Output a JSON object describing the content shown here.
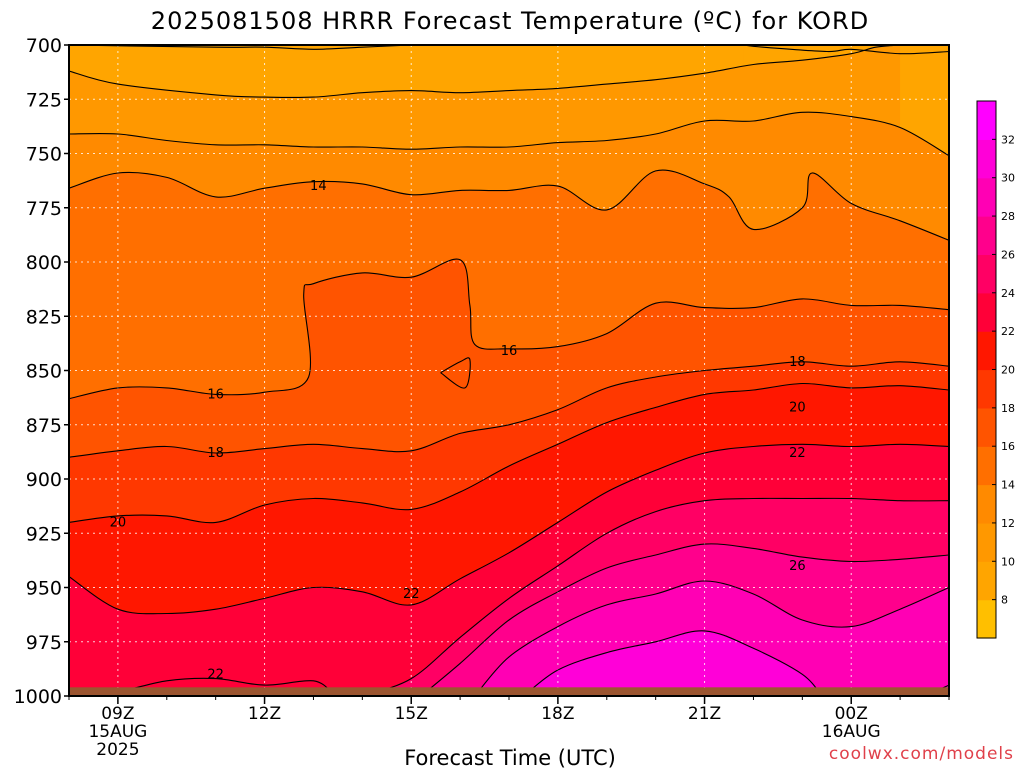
{
  "chart_data": {
    "type": "heatmap",
    "title": "2025081508 HRRR Forecast Temperature (ºC) for KORD",
    "xlabel": "Forecast Time (UTC)",
    "ylabel": "",
    "credit": "coolwx.com/models",
    "y_ticks": [
      700,
      725,
      750,
      775,
      800,
      825,
      850,
      875,
      900,
      925,
      950,
      975,
      1000
    ],
    "y_range": [
      700,
      1000
    ],
    "x_hours": [
      8,
      9,
      10,
      11,
      12,
      13,
      14,
      15,
      16,
      17,
      18,
      19,
      20,
      21,
      22,
      23,
      24,
      25,
      26
    ],
    "x_range": [
      8,
      26
    ],
    "x_ticks": [
      {
        "hour": 9,
        "lines": [
          "09Z",
          "15AUG",
          "2025"
        ]
      },
      {
        "hour": 12,
        "lines": [
          "12Z"
        ]
      },
      {
        "hour": 15,
        "lines": [
          "15Z"
        ]
      },
      {
        "hour": 18,
        "lines": [
          "18Z"
        ]
      },
      {
        "hour": 21,
        "lines": [
          "21Z"
        ]
      },
      {
        "hour": 24,
        "lines": [
          "00Z",
          "16AUG"
        ]
      }
    ],
    "colorbar": {
      "levels": [
        6,
        8,
        10,
        12,
        14,
        16,
        18,
        20,
        22,
        24,
        26,
        28,
        30,
        32,
        34
      ],
      "colors": [
        "#ffbf00",
        "#ffa500",
        "#ff9800",
        "#ff8a00",
        "#ff6f00",
        "#ff5400",
        "#ff3800",
        "#ff1700",
        "#ff0038",
        "#ff0064",
        "#ff008c",
        "#ff00b4",
        "#ff00d8",
        "#ff00ff"
      ],
      "tick_labels": [
        "8",
        "10",
        "12",
        "14",
        "16",
        "18",
        "20",
        "22",
        "24",
        "26",
        "28",
        "30",
        "32"
      ]
    },
    "contour_labels": [
      {
        "text": "14",
        "p": 765,
        "hour": 13.1
      },
      {
        "text": "16",
        "p": 841,
        "hour": 17.0
      },
      {
        "text": "16",
        "p": 861,
        "hour": 11.0
      },
      {
        "text": "18",
        "p": 846,
        "hour": 22.9
      },
      {
        "text": "18",
        "p": 888,
        "hour": 11.0
      },
      {
        "text": "20",
        "p": 867,
        "hour": 22.9
      },
      {
        "text": "20",
        "p": 920,
        "hour": 9.0
      },
      {
        "text": "22",
        "p": 888,
        "hour": 22.9
      },
      {
        "text": "22",
        "p": 953,
        "hour": 15.0
      },
      {
        "text": "22",
        "p": 990,
        "hour": 11.0
      },
      {
        "text": "26",
        "p": 940,
        "hour": 22.9
      }
    ],
    "contours": [
      {
        "level": 8,
        "points": [
          [
            700,
            8
          ],
          [
            701,
            11
          ],
          [
            701,
            12
          ],
          [
            702,
            13
          ],
          [
            701,
            14
          ],
          [
            700,
            15
          ]
        ]
      },
      {
        "level": 8,
        "points": [
          [
            700,
            21.8
          ],
          [
            701,
            22.2
          ],
          [
            703,
            23.5
          ],
          [
            702,
            24
          ],
          [
            704,
            25
          ],
          [
            703,
            26
          ]
        ]
      },
      {
        "level": 10,
        "points": [
          [
            712,
            8
          ],
          [
            718,
            9
          ],
          [
            723,
            11
          ],
          [
            724,
            12
          ],
          [
            724,
            13
          ],
          [
            722,
            14
          ],
          [
            721,
            15
          ],
          [
            722,
            16
          ],
          [
            721,
            17
          ],
          [
            720,
            18
          ],
          [
            718,
            19
          ],
          [
            716,
            20
          ],
          [
            713,
            21
          ],
          [
            709,
            22
          ],
          [
            707,
            23
          ],
          [
            704,
            24
          ],
          [
            701,
            24.5
          ],
          [
            700,
            25
          ]
        ]
      },
      {
        "level": 12,
        "points": [
          [
            741,
            8
          ],
          [
            741,
            9
          ],
          [
            744,
            10
          ],
          [
            746,
            11
          ],
          [
            746,
            12
          ],
          [
            747,
            13
          ],
          [
            747,
            14
          ],
          [
            748,
            15
          ],
          [
            747,
            16
          ],
          [
            747,
            17
          ],
          [
            745,
            18
          ],
          [
            744,
            19
          ],
          [
            741,
            20
          ],
          [
            735,
            21
          ],
          [
            735,
            22
          ],
          [
            731,
            23
          ],
          [
            733,
            24
          ],
          [
            738,
            25
          ],
          [
            751,
            26
          ]
        ]
      },
      {
        "level": 14,
        "points": [
          [
            766,
            8
          ],
          [
            759,
            9
          ],
          [
            761,
            10
          ],
          [
            770,
            11
          ],
          [
            766,
            12
          ],
          [
            763,
            13
          ],
          [
            764,
            14
          ],
          [
            769,
            15
          ],
          [
            767,
            16
          ],
          [
            767,
            17
          ],
          [
            765,
            18
          ],
          [
            776,
            19
          ],
          [
            758,
            20
          ],
          [
            764,
            21
          ],
          [
            770,
            21.5
          ],
          [
            785,
            22
          ],
          [
            775,
            23
          ],
          [
            759,
            23.2
          ],
          [
            773,
            24
          ],
          [
            781,
            25
          ],
          [
            790,
            26
          ]
        ]
      },
      {
        "level": 16,
        "points": [
          [
            863,
            8
          ],
          [
            858,
            9
          ],
          [
            858,
            10
          ],
          [
            861,
            11
          ],
          [
            860,
            12
          ],
          [
            853,
            12.9
          ],
          [
            815,
            12.8
          ],
          [
            810,
            13
          ],
          [
            805,
            14
          ],
          [
            807,
            15
          ],
          [
            799,
            16
          ],
          [
            820,
            16.2
          ],
          [
            838,
            16.3
          ],
          [
            840,
            17
          ],
          [
            839,
            18
          ],
          [
            833,
            19
          ],
          [
            819,
            20
          ],
          [
            821,
            21
          ],
          [
            821,
            22
          ],
          [
            817,
            23
          ],
          [
            820,
            24
          ],
          [
            820,
            25
          ],
          [
            822,
            26
          ]
        ]
      },
      {
        "level": 16,
        "points": [
          [
            851,
            15.6
          ],
          [
            846,
            16
          ],
          [
            845,
            16.2
          ],
          [
            858,
            16.1
          ],
          [
            851,
            15.6
          ]
        ]
      },
      {
        "level": 18,
        "points": [
          [
            890,
            8
          ],
          [
            887,
            9
          ],
          [
            885,
            10
          ],
          [
            888,
            11
          ],
          [
            886,
            12
          ],
          [
            884,
            13
          ],
          [
            886,
            14
          ],
          [
            887,
            15
          ],
          [
            879,
            16
          ],
          [
            875,
            17
          ],
          [
            868,
            18
          ],
          [
            858,
            19
          ],
          [
            853,
            20
          ],
          [
            850,
            21
          ],
          [
            848,
            22
          ],
          [
            846,
            23
          ],
          [
            848,
            24
          ],
          [
            846,
            25
          ],
          [
            848,
            26
          ]
        ]
      },
      {
        "level": 20,
        "points": [
          [
            920,
            8
          ],
          [
            917,
            9
          ],
          [
            917,
            10
          ],
          [
            920,
            11
          ],
          [
            912,
            12
          ],
          [
            909,
            13
          ],
          [
            911,
            14
          ],
          [
            914,
            15
          ],
          [
            906,
            16
          ],
          [
            894,
            17
          ],
          [
            884,
            18
          ],
          [
            874,
            19
          ],
          [
            867,
            20
          ],
          [
            861,
            21
          ],
          [
            859,
            22
          ],
          [
            856,
            23
          ],
          [
            858,
            24
          ],
          [
            857,
            25
          ],
          [
            859,
            26
          ]
        ]
      },
      {
        "level": 22,
        "points": [
          [
            945,
            8
          ],
          [
            960,
            9
          ],
          [
            962,
            10
          ],
          [
            960,
            11
          ],
          [
            955,
            12
          ],
          [
            950,
            13
          ],
          [
            952,
            14
          ],
          [
            958,
            15
          ],
          [
            946,
            16
          ],
          [
            934,
            17
          ],
          [
            920,
            18
          ],
          [
            906,
            19
          ],
          [
            896,
            20
          ],
          [
            888,
            21
          ],
          [
            885,
            22
          ],
          [
            884,
            23
          ],
          [
            885,
            24
          ],
          [
            884,
            25
          ],
          [
            885,
            26
          ]
        ]
      },
      {
        "level": 22,
        "points": [
          [
            1000,
            8
          ],
          [
            998,
            9
          ],
          [
            993,
            10
          ],
          [
            992,
            11
          ],
          [
            995,
            12
          ],
          [
            993,
            13
          ],
          [
            999,
            13.4
          ]
        ]
      },
      {
        "level": 24,
        "points": [
          [
            1000,
            14
          ],
          [
            992,
            15
          ],
          [
            973,
            16
          ],
          [
            955,
            17
          ],
          [
            940,
            18
          ],
          [
            925,
            19
          ],
          [
            915,
            20
          ],
          [
            910,
            21
          ],
          [
            909,
            22
          ],
          [
            909,
            23
          ],
          [
            909,
            24
          ],
          [
            910,
            25
          ],
          [
            910,
            26
          ]
        ]
      },
      {
        "level": 26,
        "points": [
          [
            1000,
            15.2
          ],
          [
            985,
            16
          ],
          [
            965,
            17
          ],
          [
            952,
            18
          ],
          [
            941,
            19
          ],
          [
            935,
            20
          ],
          [
            930,
            21
          ],
          [
            932,
            22
          ],
          [
            936,
            23
          ],
          [
            938,
            24
          ],
          [
            937,
            25
          ],
          [
            935,
            26
          ]
        ]
      },
      {
        "level": 28,
        "points": [
          [
            1000,
            16.3
          ],
          [
            982,
            17
          ],
          [
            968,
            18
          ],
          [
            958,
            19
          ],
          [
            953,
            20
          ],
          [
            947,
            21
          ],
          [
            953,
            22
          ],
          [
            965,
            23
          ],
          [
            968,
            24
          ],
          [
            960,
            25
          ],
          [
            950,
            26
          ]
        ]
      },
      {
        "level": 30,
        "points": [
          [
            1000,
            17.3
          ],
          [
            988,
            18
          ],
          [
            980,
            19
          ],
          [
            975,
            20
          ],
          [
            970,
            21
          ],
          [
            978,
            22
          ],
          [
            990,
            23
          ],
          [
            1000,
            23.4
          ]
        ]
      },
      {
        "level": 30,
        "points": [
          [
            999,
            25.6
          ],
          [
            995,
            26
          ]
        ]
      }
    ]
  }
}
